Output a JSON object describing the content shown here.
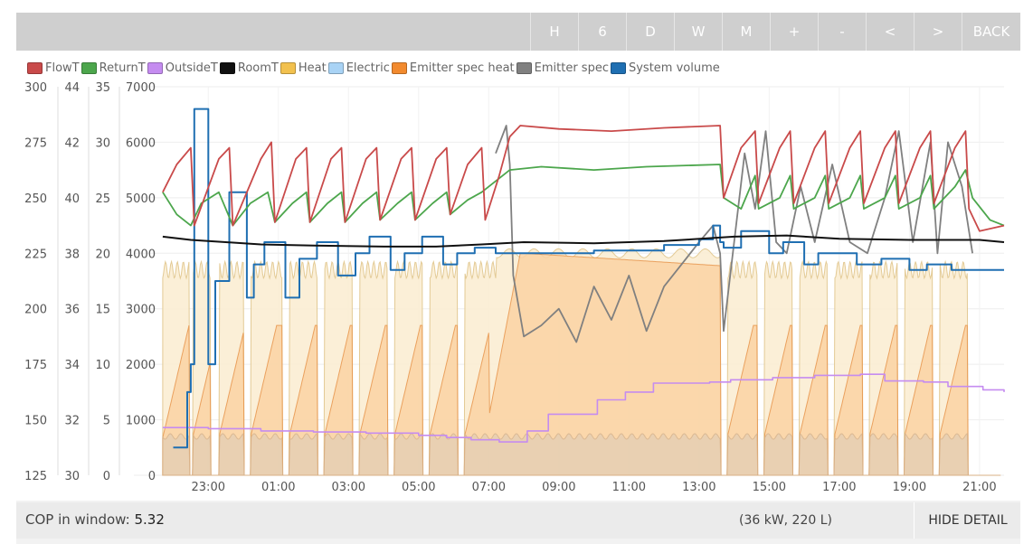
{
  "toolbar": {
    "buttons": [
      "H",
      "6",
      "D",
      "W",
      "M",
      "+",
      "-",
      "<",
      ">",
      "BACK"
    ]
  },
  "footer": {
    "cop_label": "COP in window:",
    "cop_value": "5.32",
    "capacity": "(36 kW, 220 L)",
    "hide_detail": "HIDE DETAIL"
  },
  "chart_data": {
    "type": "line",
    "x_ticks": [
      "23:00",
      "01:00",
      "03:00",
      "05:00",
      "07:00",
      "09:00",
      "11:00",
      "13:00",
      "15:00",
      "17:00",
      "19:00",
      "21:00"
    ],
    "x_range_hours": [
      21.6,
      45.7
    ],
    "axes": [
      {
        "id": "a1",
        "range": [
          125,
          300
        ],
        "ticks": [
          125,
          150,
          175,
          200,
          225,
          250,
          275,
          300
        ]
      },
      {
        "id": "a2",
        "range": [
          30,
          44
        ],
        "ticks": [
          30,
          32,
          34,
          36,
          38,
          40,
          42,
          44
        ]
      },
      {
        "id": "a3",
        "range": [
          0,
          35
        ],
        "ticks": [
          0,
          5,
          10,
          15,
          20,
          25,
          30,
          35
        ]
      },
      {
        "id": "a4",
        "range": [
          0,
          7000
        ],
        "ticks": [
          0,
          1000,
          2000,
          3000,
          4000,
          5000,
          6000,
          7000
        ]
      }
    ],
    "legend": [
      {
        "name": "FlowT",
        "color": "#c94a4a"
      },
      {
        "name": "ReturnT",
        "color": "#4ca64c"
      },
      {
        "name": "OutsideT",
        "color": "#c58cf0"
      },
      {
        "name": "RoomT",
        "color": "#111111"
      },
      {
        "name": "Heat",
        "color": "#f2c14e"
      },
      {
        "name": "Electric",
        "color": "#a9d3f5"
      },
      {
        "name": "Emitter spec heat",
        "color": "#f28a2e"
      },
      {
        "name": "Emitter spec",
        "color": "#808080"
      },
      {
        "name": "System volume",
        "color": "#1f6fb2"
      }
    ],
    "series": [
      {
        "name": "FlowT",
        "axis": "a3",
        "points": [
          [
            21.7,
            25.5
          ],
          [
            22.1,
            28
          ],
          [
            22.5,
            29.5
          ],
          [
            22.6,
            22.5
          ],
          [
            23.3,
            28.5
          ],
          [
            23.6,
            29.5
          ],
          [
            23.7,
            22.5
          ],
          [
            24.5,
            28.5
          ],
          [
            24.8,
            30
          ],
          [
            24.9,
            22.8
          ],
          [
            25.5,
            28.5
          ],
          [
            25.8,
            29.5
          ],
          [
            25.9,
            22.8
          ],
          [
            26.5,
            28.5
          ],
          [
            26.8,
            29.5
          ],
          [
            26.9,
            22.8
          ],
          [
            27.5,
            28.5
          ],
          [
            27.8,
            29.5
          ],
          [
            27.9,
            23
          ],
          [
            28.5,
            28.5
          ],
          [
            28.8,
            29.5
          ],
          [
            28.9,
            23
          ],
          [
            29.5,
            28.5
          ],
          [
            29.8,
            29.5
          ],
          [
            29.9,
            23.5
          ],
          [
            30.4,
            28
          ],
          [
            30.8,
            29.5
          ],
          [
            30.9,
            23
          ],
          [
            31.3,
            27
          ],
          [
            31.6,
            30.5
          ],
          [
            31.9,
            31.5
          ],
          [
            33,
            31.2
          ],
          [
            34.5,
            31
          ],
          [
            36,
            31.3
          ],
          [
            37.6,
            31.5
          ],
          [
            37.7,
            25
          ],
          [
            38.2,
            29.5
          ],
          [
            38.6,
            31
          ],
          [
            38.7,
            24.5
          ],
          [
            39.3,
            29.5
          ],
          [
            39.6,
            31
          ],
          [
            39.7,
            24.5
          ],
          [
            40.3,
            29.5
          ],
          [
            40.6,
            31
          ],
          [
            40.7,
            24.5
          ],
          [
            41.3,
            29.5
          ],
          [
            41.6,
            31
          ],
          [
            41.7,
            24.5
          ],
          [
            42.3,
            29.5
          ],
          [
            42.6,
            31
          ],
          [
            42.7,
            24.5
          ],
          [
            43.3,
            29.5
          ],
          [
            43.6,
            31
          ],
          [
            43.7,
            24.5
          ],
          [
            44.3,
            29.5
          ],
          [
            44.6,
            31
          ],
          [
            44.7,
            24
          ],
          [
            45.0,
            22
          ],
          [
            45.7,
            22.5
          ]
        ]
      },
      {
        "name": "ReturnT",
        "axis": "a3",
        "points": [
          [
            21.7,
            25.5
          ],
          [
            22.1,
            23.5
          ],
          [
            22.5,
            22.5
          ],
          [
            22.8,
            24.5
          ],
          [
            23.3,
            25.5
          ],
          [
            23.7,
            22.5
          ],
          [
            24.2,
            24.5
          ],
          [
            24.7,
            25.5
          ],
          [
            24.9,
            22.8
          ],
          [
            25.4,
            24.5
          ],
          [
            25.8,
            25.5
          ],
          [
            25.9,
            22.8
          ],
          [
            26.4,
            24.5
          ],
          [
            26.8,
            25.5
          ],
          [
            26.9,
            22.8
          ],
          [
            27.4,
            24.5
          ],
          [
            27.8,
            25.5
          ],
          [
            27.9,
            23
          ],
          [
            28.4,
            24.5
          ],
          [
            28.8,
            25.5
          ],
          [
            28.9,
            23
          ],
          [
            29.4,
            24.5
          ],
          [
            29.8,
            25.5
          ],
          [
            29.9,
            23.5
          ],
          [
            30.4,
            24.8
          ],
          [
            30.8,
            25.5
          ],
          [
            31.2,
            26.5
          ],
          [
            31.6,
            27.5
          ],
          [
            32.5,
            27.8
          ],
          [
            34,
            27.5
          ],
          [
            35.5,
            27.8
          ],
          [
            37.6,
            28
          ],
          [
            37.7,
            25
          ],
          [
            38.2,
            24
          ],
          [
            38.6,
            27
          ],
          [
            38.7,
            24
          ],
          [
            39.3,
            25
          ],
          [
            39.6,
            27
          ],
          [
            39.7,
            24
          ],
          [
            40.3,
            25
          ],
          [
            40.6,
            27
          ],
          [
            40.7,
            24
          ],
          [
            41.3,
            25
          ],
          [
            41.6,
            27
          ],
          [
            41.7,
            24
          ],
          [
            42.3,
            25
          ],
          [
            42.6,
            27
          ],
          [
            42.7,
            24
          ],
          [
            43.3,
            25
          ],
          [
            43.6,
            27
          ],
          [
            43.7,
            24
          ],
          [
            44.3,
            26
          ],
          [
            44.6,
            27.5
          ],
          [
            44.8,
            25
          ],
          [
            45.3,
            23
          ],
          [
            45.7,
            22.5
          ]
        ]
      },
      {
        "name": "RoomT",
        "axis": "a3",
        "points": [
          [
            21.7,
            21.5
          ],
          [
            22.5,
            21.2
          ],
          [
            23.5,
            21
          ],
          [
            24.5,
            20.8
          ],
          [
            26,
            20.7
          ],
          [
            28,
            20.6
          ],
          [
            29.5,
            20.6
          ],
          [
            30.8,
            20.8
          ],
          [
            32,
            21
          ],
          [
            34,
            20.9
          ],
          [
            36,
            21.1
          ],
          [
            38,
            21.5
          ],
          [
            39.5,
            21.6
          ],
          [
            41,
            21.3
          ],
          [
            43,
            21.2
          ],
          [
            45,
            21.2
          ],
          [
            45.7,
            21
          ]
        ]
      },
      {
        "name": "OutsideT",
        "axis": "a3",
        "points": [
          [
            21.7,
            4.3
          ],
          [
            23,
            4.2
          ],
          [
            24.5,
            4.0
          ],
          [
            26,
            3.9
          ],
          [
            27.5,
            3.8
          ],
          [
            29,
            3.6
          ],
          [
            29.8,
            3.4
          ],
          [
            30.5,
            3.2
          ],
          [
            31.3,
            3.0
          ],
          [
            32.1,
            4.0
          ],
          [
            32.7,
            5.5
          ],
          [
            34.1,
            6.8
          ],
          [
            34.9,
            7.5
          ],
          [
            35.7,
            8.3
          ],
          [
            37.3,
            8.4
          ],
          [
            37.9,
            8.6
          ],
          [
            39.1,
            8.8
          ],
          [
            40.3,
            9.0
          ],
          [
            41.6,
            9.1
          ],
          [
            42.3,
            8.5
          ],
          [
            43.4,
            8.4
          ],
          [
            44.1,
            8.0
          ],
          [
            45.1,
            7.7
          ],
          [
            45.7,
            7.5
          ]
        ]
      },
      {
        "name": "Emitter spec",
        "axis": "a3",
        "points": [
          [
            31.2,
            29
          ],
          [
            31.5,
            31.5
          ],
          [
            31.6,
            28
          ],
          [
            31.7,
            18
          ],
          [
            32,
            12.5
          ],
          [
            32.5,
            13.5
          ],
          [
            33,
            15
          ],
          [
            33.5,
            12
          ],
          [
            34,
            17
          ],
          [
            34.5,
            14
          ],
          [
            35,
            18
          ],
          [
            35.5,
            13
          ],
          [
            36,
            17
          ],
          [
            36.5,
            19
          ],
          [
            37,
            21
          ],
          [
            37.4,
            22.5
          ],
          [
            37.6,
            20
          ],
          [
            37.7,
            13
          ],
          [
            38.3,
            29
          ],
          [
            38.6,
            24
          ],
          [
            38.9,
            31
          ],
          [
            39.2,
            21
          ],
          [
            39.5,
            20
          ],
          [
            39.9,
            26
          ],
          [
            40.3,
            21
          ],
          [
            40.8,
            28
          ],
          [
            41.3,
            21
          ],
          [
            41.8,
            20
          ],
          [
            42.3,
            25
          ],
          [
            42.7,
            31
          ],
          [
            43.1,
            21
          ],
          [
            43.6,
            30
          ],
          [
            43.8,
            20
          ],
          [
            44.1,
            30
          ],
          [
            44.5,
            26
          ],
          [
            44.8,
            20
          ]
        ]
      },
      {
        "name": "System volume",
        "axis": "a4",
        "points": [
          [
            22.0,
            500
          ],
          [
            22.4,
            1500
          ],
          [
            22.5,
            2000
          ],
          [
            22.6,
            6600
          ],
          [
            22.95,
            6600
          ],
          [
            23.0,
            2000
          ],
          [
            23.2,
            3500
          ],
          [
            23.6,
            5100
          ],
          [
            24.0,
            5100
          ],
          [
            24.1,
            3200
          ],
          [
            24.3,
            3800
          ],
          [
            24.6,
            4200
          ],
          [
            25.1,
            4200
          ],
          [
            25.2,
            3200
          ],
          [
            25.6,
            3900
          ],
          [
            26.1,
            4200
          ],
          [
            26.6,
            4200
          ],
          [
            26.7,
            3600
          ],
          [
            27.2,
            4000
          ],
          [
            27.6,
            4300
          ],
          [
            28.1,
            4300
          ],
          [
            28.2,
            3700
          ],
          [
            28.6,
            4000
          ],
          [
            29.1,
            4300
          ],
          [
            29.6,
            4300
          ],
          [
            29.7,
            3800
          ],
          [
            30.1,
            4000
          ],
          [
            30.6,
            4100
          ],
          [
            31.0,
            4100
          ],
          [
            31.2,
            4000
          ],
          [
            32.5,
            4000
          ],
          [
            34,
            4050
          ],
          [
            36,
            4150
          ],
          [
            37.0,
            4250
          ],
          [
            37.4,
            4500
          ],
          [
            37.6,
            4200
          ],
          [
            37.7,
            4100
          ],
          [
            38.2,
            4400
          ],
          [
            38.9,
            4400
          ],
          [
            39.0,
            4000
          ],
          [
            39.4,
            4200
          ],
          [
            39.9,
            4200
          ],
          [
            40.0,
            3800
          ],
          [
            40.4,
            4000
          ],
          [
            41.4,
            4000
          ],
          [
            41.5,
            3800
          ],
          [
            42.2,
            3900
          ],
          [
            42.9,
            3900
          ],
          [
            43.0,
            3700
          ],
          [
            43.5,
            3800
          ],
          [
            44.1,
            3800
          ],
          [
            44.2,
            3700
          ],
          [
            45.7,
            3700
          ]
        ]
      }
    ],
    "heat_bands": {
      "note": "Heat and Emitter spec heat areas (axis a4) follow repeating on/off heating cycles; OFF gaps at hours listed",
      "off_gaps": [
        [
          22.45,
          22.55
        ],
        [
          23.05,
          23.3
        ],
        [
          24.0,
          24.2
        ],
        [
          25.1,
          25.3
        ],
        [
          26.1,
          26.3
        ],
        [
          27.1,
          27.3
        ],
        [
          28.1,
          28.3
        ],
        [
          29.1,
          29.3
        ],
        [
          30.1,
          30.3
        ],
        [
          37.6,
          37.8
        ],
        [
          38.65,
          38.85
        ],
        [
          39.65,
          39.85
        ],
        [
          40.65,
          40.85
        ],
        [
          41.65,
          41.85
        ],
        [
          42.65,
          42.85
        ],
        [
          43.65,
          43.85
        ],
        [
          44.65,
          45.7
        ]
      ],
      "heat_on_level": 3700,
      "emitter_heat_peak": 2700,
      "electric_level": 700
    }
  }
}
